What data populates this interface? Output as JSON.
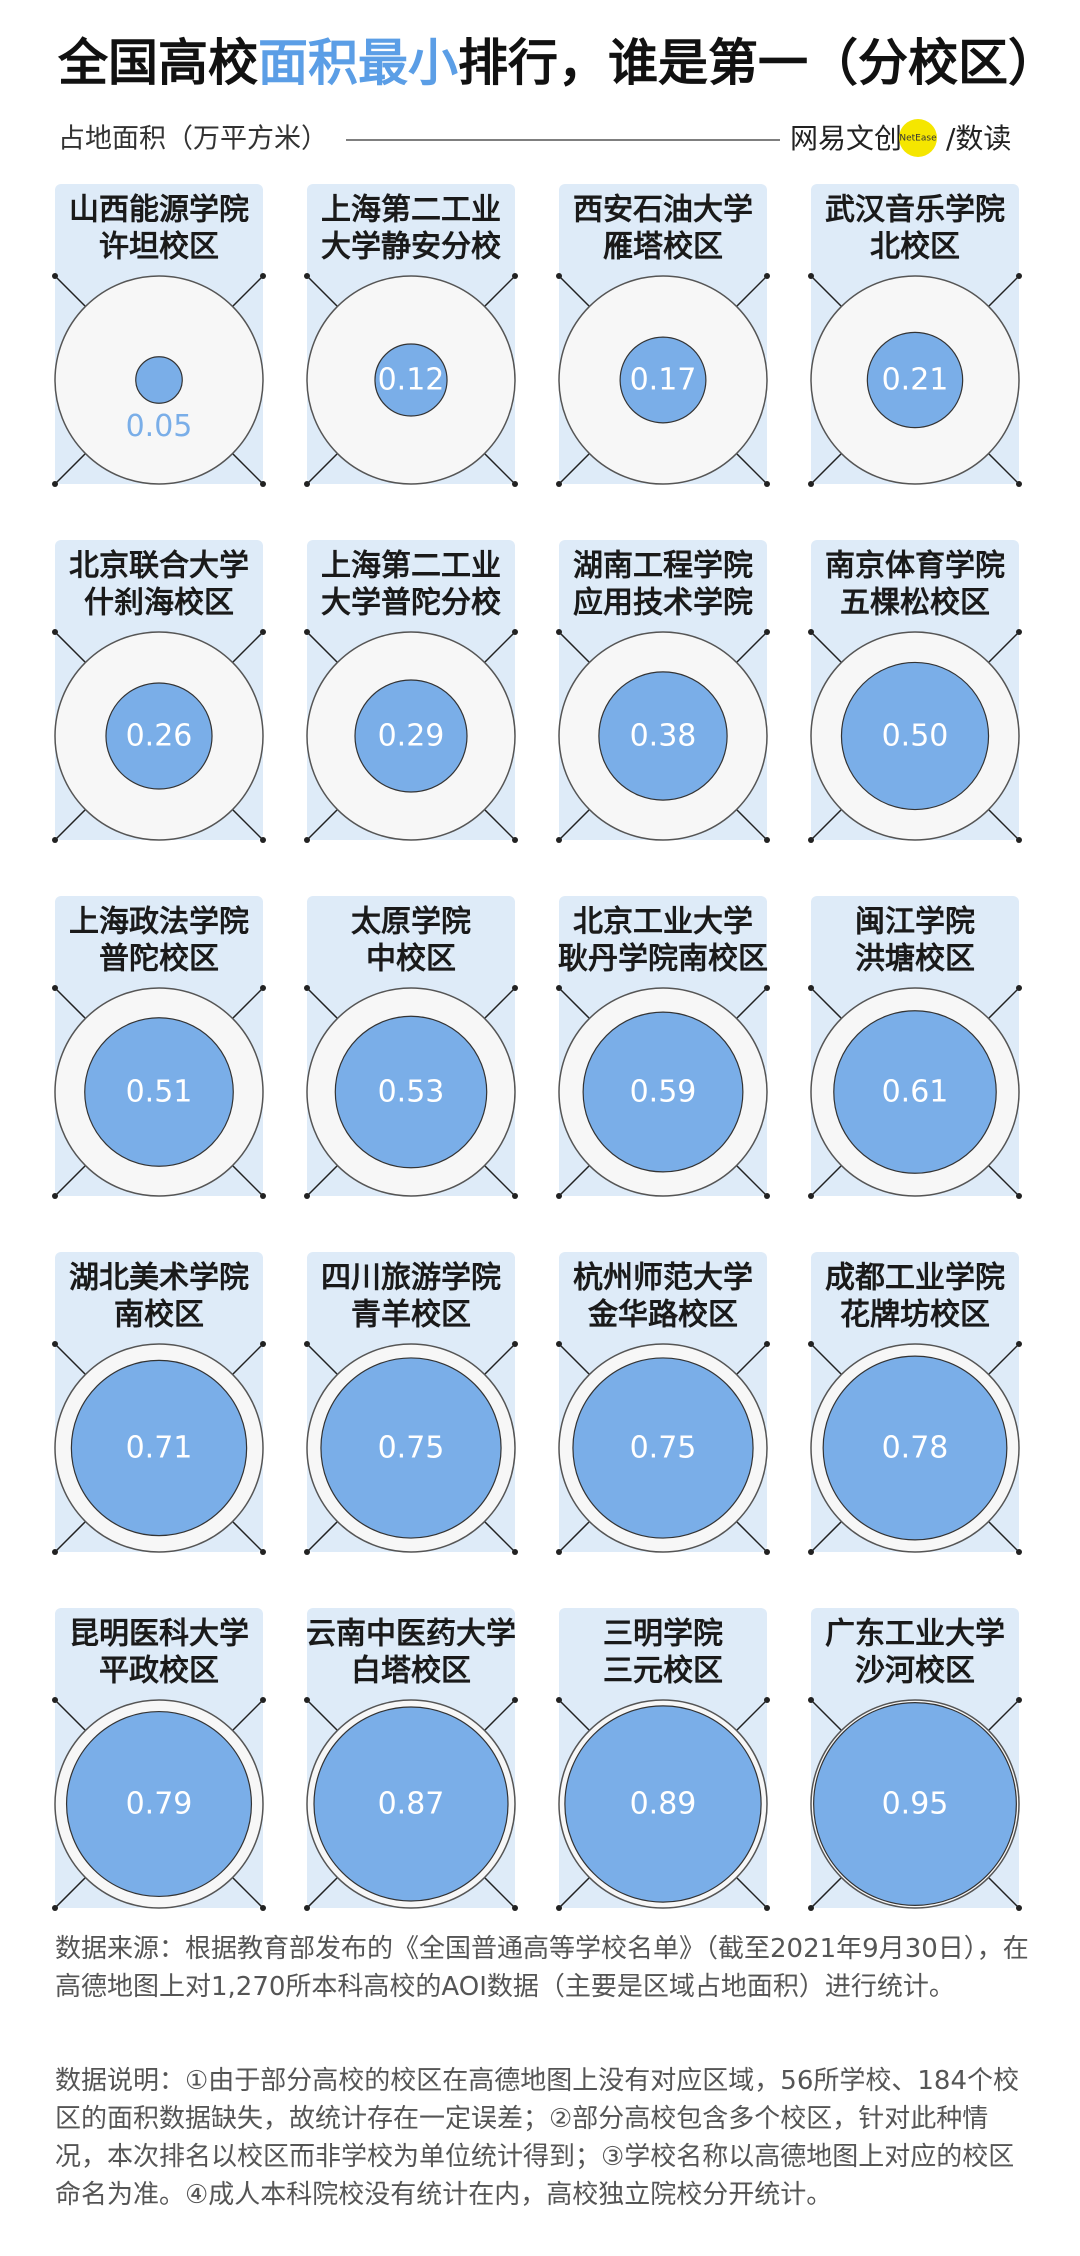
{
  "chart_data": {
    "type": "bubble",
    "title_parts": [
      "全国高校",
      "面积最小",
      "排行，谁是第一（分校区）"
    ],
    "subtitle": "占地面积（万平方米）",
    "brand": {
      "name": "网易文创",
      "badge": "NetEase",
      "section": "/数读"
    },
    "categories": [
      [
        "山西能源学院",
        "许坦校区"
      ],
      [
        "上海第二工业",
        "大学静安分校"
      ],
      [
        "西安石油大学",
        "雁塔校区"
      ],
      [
        "武汉音乐学院",
        "北校区"
      ],
      [
        "北京联合大学",
        "什刹海校区"
      ],
      [
        "上海第二工业",
        "大学普陀分校"
      ],
      [
        "湖南工程学院",
        "应用技术学院"
      ],
      [
        "南京体育学院",
        "五棵松校区"
      ],
      [
        "上海政法学院",
        "普陀校区"
      ],
      [
        "太原学院",
        "中校区"
      ],
      [
        "北京工业大学",
        "耿丹学院南校区"
      ],
      [
        "闽江学院",
        "洪塘校区"
      ],
      [
        "湖北美术学院",
        "南校区"
      ],
      [
        "四川旅游学院",
        "青羊校区"
      ],
      [
        "杭州师范大学",
        "金华路校区"
      ],
      [
        "成都工业学院",
        "花牌坊校区"
      ],
      [
        "昆明医科大学",
        "平政校区"
      ],
      [
        "云南中医药大学",
        "白塔校区"
      ],
      [
        "三明学院",
        "三元校区"
      ],
      [
        "广东工业大学",
        "沙河校区"
      ]
    ],
    "values": [
      0.05,
      0.12,
      0.17,
      0.21,
      0.26,
      0.29,
      0.38,
      0.5,
      0.51,
      0.53,
      0.59,
      0.61,
      0.71,
      0.75,
      0.75,
      0.78,
      0.79,
      0.87,
      0.89,
      0.95
    ],
    "value_labels": [
      "0.05",
      "0.12",
      "0.17",
      "0.21",
      "0.26",
      "0.29",
      "0.38",
      "0.50",
      "0.51",
      "0.53",
      "0.59",
      "0.61",
      "0.71",
      "0.75",
      "0.75",
      "0.78",
      "0.79",
      "0.87",
      "0.89",
      "0.95"
    ],
    "rlim": [
      0,
      1
    ],
    "color": "#7aaee8",
    "accent": "#5b9ee6",
    "notes": [
      "数据来源：根据教育部发布的《全国普通高等学校名单》（截至2021年9月30日），在高德地图上对1,270所本科高校的AOI数据（主要是区域占地面积）进行统计。",
      "数据说明：①由于部分高校的校区在高德地图上没有对应区域，56所学校、184个校区的面积数据缺失，故统计存在一定误差；②部分高校包含多个校区，针对此种情况，本次排名以校区而非学校为单位统计得到；③学校名称以高德地图上对应的校区命名为准。④成人本科院校没有统计在内，高校独立院校分开统计。"
    ]
  }
}
